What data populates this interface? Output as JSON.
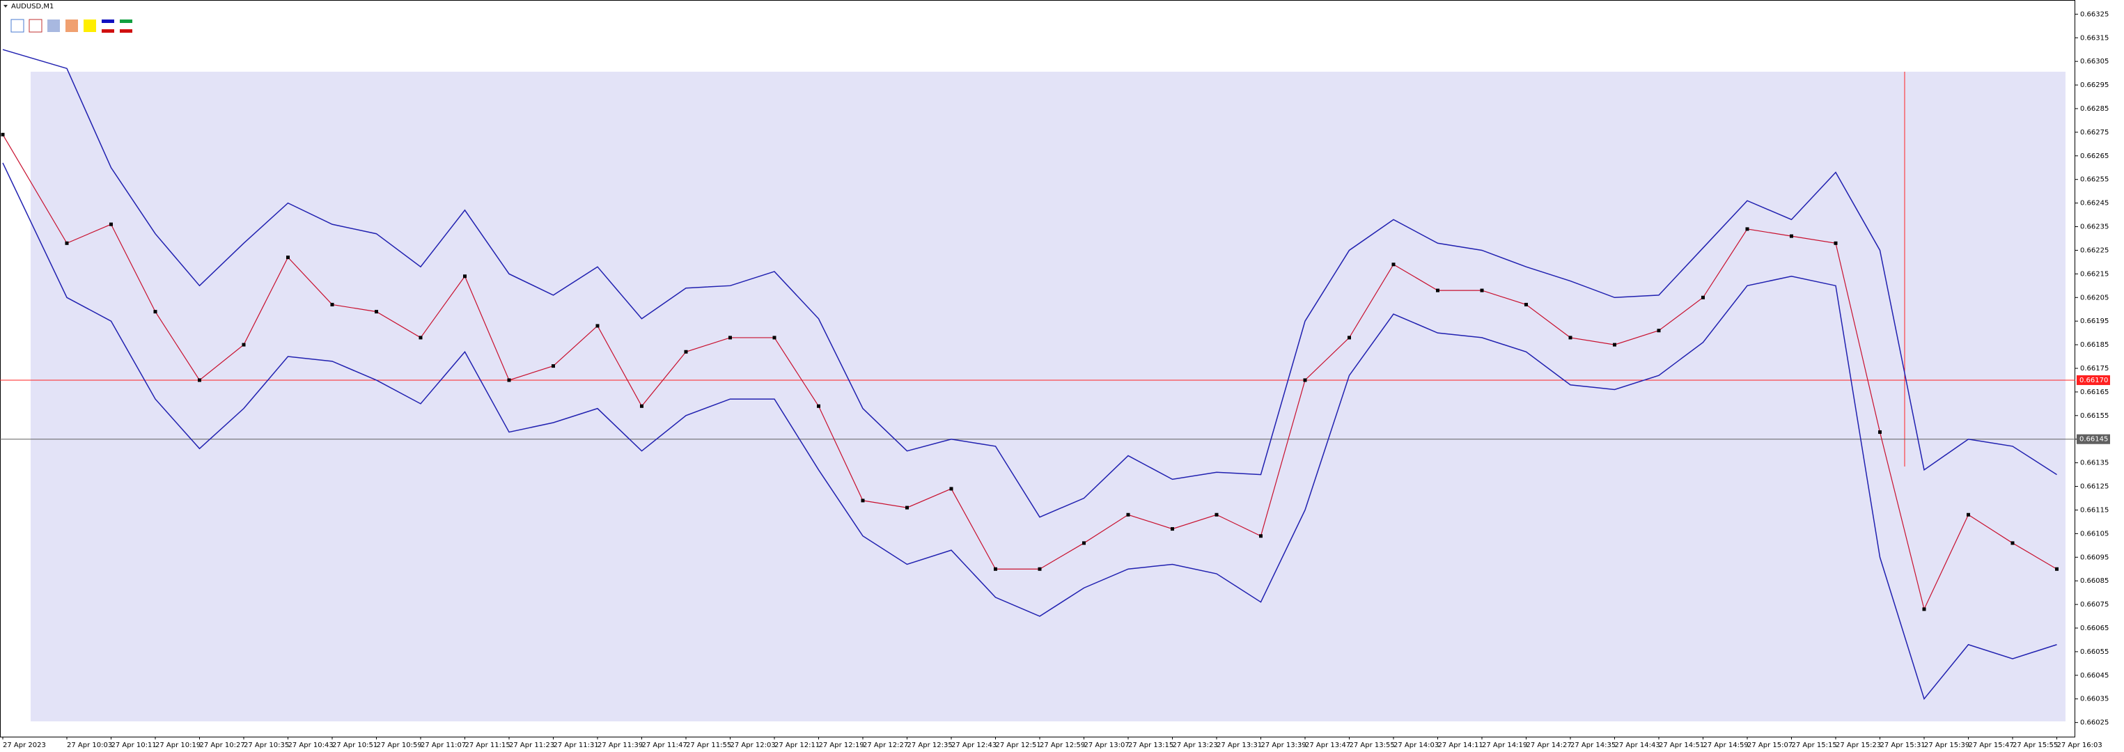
{
  "chart_data": {
    "type": "line",
    "title": "AUDUSD,M1",
    "categories": [
      "27 Apr 2023",
      "27 Apr 10:03",
      "27 Apr 10:11",
      "27 Apr 10:19",
      "27 Apr 10:27",
      "27 Apr 10:35",
      "27 Apr 10:43",
      "27 Apr 10:51",
      "27 Apr 10:59",
      "27 Apr 11:07",
      "27 Apr 11:15",
      "27 Apr 11:23",
      "27 Apr 11:31",
      "27 Apr 11:39",
      "27 Apr 11:47",
      "27 Apr 11:55",
      "27 Apr 12:03",
      "27 Apr 12:11",
      "27 Apr 12:19",
      "27 Apr 12:27",
      "27 Apr 12:35",
      "27 Apr 12:43",
      "27 Apr 12:51",
      "27 Apr 12:59",
      "27 Apr 13:07",
      "27 Apr 13:15",
      "27 Apr 13:23",
      "27 Apr 13:31",
      "27 Apr 13:39",
      "27 Apr 13:47",
      "27 Apr 13:55",
      "27 Apr 14:03",
      "27 Apr 14:11",
      "27 Apr 14:19",
      "27 Apr 14:27",
      "27 Apr 14:35",
      "27 Apr 14:43",
      "27 Apr 14:51",
      "27 Apr 14:59",
      "27 Apr 15:07",
      "27 Apr 15:15",
      "27 Apr 15:23",
      "27 Apr 15:31",
      "27 Apr 15:39",
      "27 Apr 15:47",
      "27 Apr 15:55",
      "27 Apr 16:03"
    ],
    "series": [
      {
        "color": "#c8102e",
        "values": [
          0.66274,
          0.66228,
          0.66236,
          0.66199,
          0.6617,
          0.66185,
          0.66222,
          0.66202,
          0.66199,
          0.66188,
          0.66214,
          0.6617,
          0.66176,
          0.66193,
          0.66159,
          0.66182,
          0.66188,
          0.66188,
          0.66159,
          0.66119,
          0.66116,
          0.66124,
          0.6609,
          0.6609,
          0.66101,
          0.66113,
          0.66107,
          0.66113,
          0.66104,
          0.6617,
          0.66188,
          0.66219,
          0.66208,
          0.66208,
          0.66202,
          0.66188,
          0.66185,
          0.66191,
          0.66205,
          0.66234,
          0.66231,
          0.66228,
          0.66148,
          0.66073,
          0.66113,
          0.66101,
          0.6609
        ]
      },
      {
        "color": "#2020b0",
        "values": [
          0.6631,
          0.66302,
          0.6626,
          0.66232,
          0.6621,
          0.66228,
          0.66245,
          0.66236,
          0.66232,
          0.66218,
          0.66242,
          0.66215,
          0.66206,
          0.66218,
          0.66196,
          0.66209,
          0.6621,
          0.66216,
          0.66196,
          0.66158,
          0.6614,
          0.66145,
          0.66142,
          0.66112,
          0.6612,
          0.66138,
          0.66128,
          0.66131,
          0.6613,
          0.66195,
          0.66225,
          0.66238,
          0.66228,
          0.66225,
          0.66218,
          0.66212,
          0.66205,
          0.66206,
          0.66226,
          0.66246,
          0.66238,
          0.66258,
          0.66225,
          0.66132,
          0.66145,
          0.66142,
          0.6613
        ]
      },
      {
        "color": "#2020b0",
        "values": [
          0.66262,
          0.66205,
          0.66195,
          0.66162,
          0.66141,
          0.66158,
          0.6618,
          0.66178,
          0.6617,
          0.6616,
          0.66182,
          0.66148,
          0.66152,
          0.66158,
          0.6614,
          0.66155,
          0.66162,
          0.66162,
          0.66132,
          0.66104,
          0.66092,
          0.66098,
          0.66078,
          0.6607,
          0.66082,
          0.6609,
          0.66092,
          0.66088,
          0.66076,
          0.66115,
          0.66172,
          0.66198,
          0.6619,
          0.66188,
          0.66182,
          0.66168,
          0.66166,
          0.66172,
          0.66186,
          0.6621,
          0.66214,
          0.6621,
          0.66095,
          0.66035,
          0.66058,
          0.66052,
          0.66058
        ]
      }
    ],
    "ylim": [
      0.66019,
      0.66331
    ],
    "yticks": [
      0.66325,
      0.66315,
      0.66305,
      0.66295,
      0.66285,
      0.66275,
      0.66265,
      0.66255,
      0.66245,
      0.66235,
      0.66225,
      0.66215,
      0.66205,
      0.66195,
      0.66185,
      0.66175,
      0.66165,
      0.66155,
      0.66145,
      0.66135,
      0.66125,
      0.66115,
      0.66105,
      0.66095,
      0.66085,
      0.66075,
      0.66065,
      0.66055,
      0.66045,
      0.66035,
      0.66025
    ],
    "levels": [
      {
        "value": 0.6617,
        "label": "0.66170",
        "color": "#ff2020"
      },
      {
        "value": 0.66145,
        "label": "0.66145",
        "color": "#606060"
      }
    ]
  }
}
